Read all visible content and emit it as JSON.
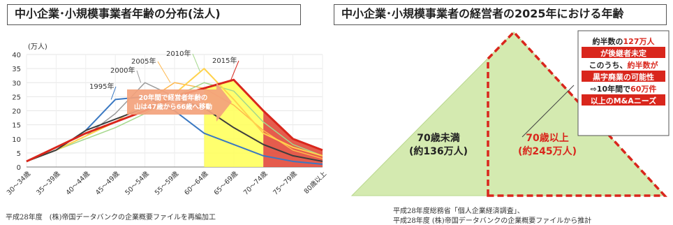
{
  "left": {
    "title": "中小企業･小規模事業者年齢の分布(法人)",
    "source": "平成28年度　(株)帝国データバンクの企業概要ファイルを再編加工"
  },
  "right": {
    "title": "中小企業･小規模事業者の経営者の2025年における年齢",
    "source_lines": [
      "平成28年度総務省「個人企業経済調査」、",
      "平成28年度 (株)帝国データバンクの企業概要ファイルから推計"
    ],
    "under70_label_lines": [
      "70歳未満",
      "(約136万人)"
    ],
    "over70_label_lines": [
      "70歳以上",
      "(約245万人)"
    ],
    "callout_lines": [
      [
        {
          "t": "約半数の",
          "c": "#222222"
        },
        {
          "t": "127万人",
          "c": "#d9261c"
        }
      ],
      [
        {
          "t": "が後継者未定",
          "c": "#ffffff",
          "bg": "#d9261c"
        }
      ],
      [
        {
          "t": "このうち、",
          "c": "#222222"
        },
        {
          "t": "約半数が",
          "c": "#d9261c"
        }
      ],
      [
        {
          "t": "黒字廃業の可能性",
          "c": "#ffffff",
          "bg": "#d9261c"
        }
      ],
      [
        {
          "t": "⇨10年間で",
          "c": "#222222"
        },
        {
          "t": "60万件",
          "c": "#d9261c"
        }
      ],
      [
        {
          "t": "以上のM&Aニーズ",
          "c": "#ffffff",
          "bg": "#d9261c"
        }
      ]
    ]
  },
  "colors": {
    "accent_red": "#d9261c",
    "triangle_fill": "#d4eab0",
    "yellow_band": "#ffff55",
    "red_band": "#e24a3a"
  },
  "chart_data": {
    "type": "line",
    "unit_label": "(万人)",
    "categories": [
      "30～34歳",
      "35～39歳",
      "40～44歳",
      "45～49歳",
      "50～54歳",
      "55～59歳",
      "60～64歳",
      "65～69歳",
      "70～74歳",
      "75～79歳",
      "80歳以上"
    ],
    "ylim": [
      0,
      40
    ],
    "yticks": [
      0,
      5,
      10,
      15,
      20,
      25,
      30,
      35,
      40
    ],
    "series": [
      {
        "name": "1995年",
        "color": "#3a78c2",
        "width": 2,
        "values": [
          2,
          6,
          13,
          24,
          25,
          20,
          12,
          8,
          4,
          2,
          1
        ]
      },
      {
        "name": "2000年",
        "color": "#9a9a9a",
        "width": 1.5,
        "values": [
          2,
          6,
          11,
          19,
          30,
          25,
          21,
          14,
          8,
          4,
          2
        ]
      },
      {
        "name": "2005年",
        "color": "#ffb84d",
        "width": 1.5,
        "values": [
          2,
          6,
          11,
          16,
          23,
          30,
          28,
          22,
          13,
          6,
          3
        ]
      },
      {
        "name": "2010年",
        "color": "#a5d88c",
        "width": 1.5,
        "values": [
          2,
          6,
          10,
          14,
          19,
          25,
          30,
          27,
          16,
          8,
          4
        ]
      },
      {
        "name": "2015年",
        "color": "#d9261c",
        "width": 3,
        "values": [
          2,
          7,
          12,
          16,
          20,
          25,
          28,
          31,
          20,
          10,
          6
        ]
      },
      {
        "name": "",
        "color": "#ffd24d",
        "width": 2,
        "values": [
          2,
          6,
          11,
          16,
          20,
          26,
          35,
          24,
          12,
          7,
          4
        ]
      },
      {
        "name": "",
        "color": "#3d3d3d",
        "width": 2,
        "values": [
          2,
          6,
          13,
          17,
          21,
          24,
          21,
          14,
          8,
          4,
          2
        ]
      }
    ],
    "series_labels": [
      {
        "text": "1995年",
        "series": 0
      },
      {
        "text": "2000年",
        "series": 1
      },
      {
        "text": "2005年",
        "series": 2
      },
      {
        "text": "2010年",
        "series": 3
      },
      {
        "text": "2015年",
        "series": 4
      }
    ],
    "arrow_text_lines": [
      "20年間で経営者年齢の",
      "山は47歳から66歳へ移動"
    ]
  }
}
